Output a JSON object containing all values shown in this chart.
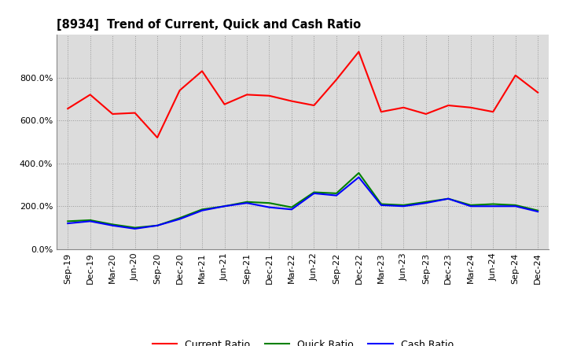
{
  "title": "[8934]  Trend of Current, Quick and Cash Ratio",
  "labels": [
    "Sep-19",
    "Dec-19",
    "Mar-20",
    "Jun-20",
    "Sep-20",
    "Dec-20",
    "Mar-21",
    "Jun-21",
    "Sep-21",
    "Dec-21",
    "Mar-22",
    "Jun-22",
    "Sep-22",
    "Dec-22",
    "Mar-23",
    "Jun-23",
    "Sep-23",
    "Dec-23",
    "Mar-24",
    "Jun-24",
    "Sep-24",
    "Dec-24"
  ],
  "current_ratio": [
    655,
    720,
    630,
    635,
    520,
    740,
    830,
    675,
    720,
    715,
    690,
    670,
    790,
    920,
    640,
    660,
    630,
    670,
    660,
    640,
    810,
    730
  ],
  "quick_ratio": [
    130,
    135,
    115,
    100,
    110,
    145,
    185,
    200,
    220,
    215,
    195,
    265,
    260,
    355,
    210,
    205,
    220,
    235,
    205,
    210,
    205,
    180
  ],
  "cash_ratio": [
    120,
    130,
    110,
    95,
    110,
    140,
    180,
    200,
    215,
    195,
    185,
    260,
    250,
    335,
    205,
    200,
    215,
    235,
    200,
    200,
    200,
    175
  ],
  "current_color": "#FF0000",
  "quick_color": "#008000",
  "cash_color": "#0000FF",
  "background_color": "#FFFFFF",
  "plot_bg_color": "#DCDCDC",
  "grid_color": "#AAAAAA",
  "ylim": [
    0,
    1000
  ],
  "yticks": [
    0,
    200,
    400,
    600,
    800
  ],
  "legend_labels": [
    "Current Ratio",
    "Quick Ratio",
    "Cash Ratio"
  ]
}
